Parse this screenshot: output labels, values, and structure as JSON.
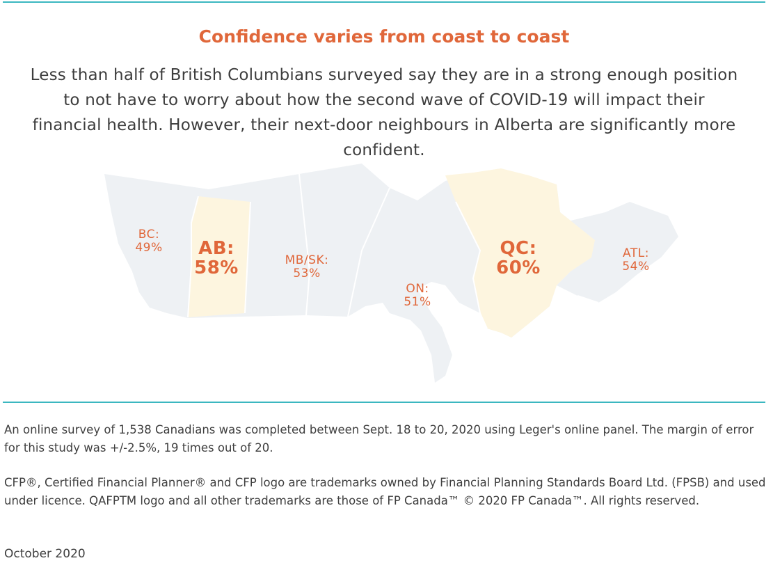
{
  "colors": {
    "accent": "#e0673a",
    "rule": "#3bb7c0",
    "land": "#eef1f4",
    "highlight": "#fdf5df",
    "border": "#ffffff"
  },
  "title": "Confidence varies from coast to coast",
  "intro": "Less than half of British Columbians surveyed say they are in a strong enough position to not have to worry about how the second wave of COVID-19 will impact their financial health. However, their next-door neighbours in Alberta are significantly more confident.",
  "regions": [
    {
      "id": "bc",
      "code": "BC:",
      "value": "49%",
      "highlighted": false
    },
    {
      "id": "ab",
      "code": "AB:",
      "value": "58%",
      "highlighted": true
    },
    {
      "id": "mbsk",
      "code": "MB/SK:",
      "value": "53%",
      "highlighted": false
    },
    {
      "id": "on",
      "code": "ON:",
      "value": "51%",
      "highlighted": false
    },
    {
      "id": "qc",
      "code": "QC:",
      "value": "60%",
      "highlighted": true
    },
    {
      "id": "atl",
      "code": "ATL:",
      "value": "54%",
      "highlighted": false
    }
  ],
  "footer": {
    "survey_note": "An online survey of 1,538 Canadians was completed between Sept. 18 to 20, 2020 using Leger's online panel. The margin of error for this study was +/-2.5%, 19 times out of 20.",
    "trademark_note": "CFP®, Certified Financial Planner® and CFP logo are trademarks owned by Financial Planning Standards Board Ltd. (FPSB) and used under licence. QAFPTM logo and all other trademarks are those of FP Canada™ © 2020 FP Canada™. All rights reserved.",
    "date": "October 2020"
  }
}
